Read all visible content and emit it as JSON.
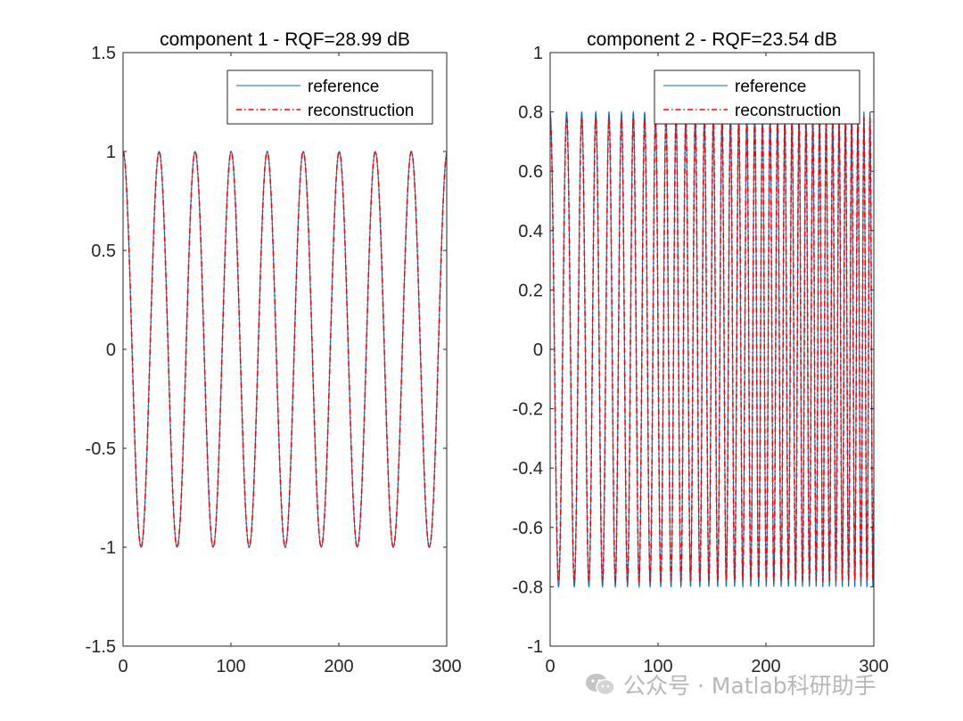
{
  "chart_data": [
    {
      "type": "line",
      "title": "component 1 - RQF=28.99 dB",
      "xlabel": "",
      "ylabel": "",
      "xlim": [
        0,
        300
      ],
      "ylim": [
        -1.5,
        1.5
      ],
      "xticks": [
        0,
        100,
        200,
        300
      ],
      "xtick_labels": [
        "0",
        "100",
        "200",
        "300"
      ],
      "yticks": [
        -1.5,
        -1,
        -0.5,
        0,
        0.5,
        1,
        1.5
      ],
      "ytick_labels": [
        "-1.5",
        "-1",
        "-0.5",
        "0",
        "0.5",
        "1",
        "1.5"
      ],
      "legend": {
        "location": "top-right",
        "entries": [
          "reference",
          "reconstruction"
        ]
      },
      "grid": false,
      "series": [
        {
          "name": "reference",
          "color": "#0072BD",
          "style": "solid",
          "signal": "cosine",
          "amplitude": 1.0,
          "period": 33.4,
          "x_start": 0,
          "x_end": 300
        },
        {
          "name": "reconstruction",
          "color": "#FF0000",
          "style": "dash-dot",
          "signal": "cosine",
          "amplitude": 1.0,
          "period": 33.4,
          "x_start": 0,
          "x_end": 300
        }
      ]
    },
    {
      "type": "line",
      "title": "component 2 - RQF=23.54 dB",
      "xlabel": "",
      "ylabel": "",
      "xlim": [
        0,
        300
      ],
      "ylim": [
        -1,
        1
      ],
      "xticks": [
        0,
        100,
        200,
        300
      ],
      "xtick_labels": [
        "0",
        "100",
        "200",
        "300"
      ],
      "yticks": [
        -1,
        -0.8,
        -0.6,
        -0.4,
        -0.2,
        0,
        0.2,
        0.4,
        0.6,
        0.8,
        1
      ],
      "ytick_labels": [
        "-1",
        "-0.8",
        "-0.6",
        "-0.4",
        "-0.2",
        "0",
        "0.2",
        "0.4",
        "0.6",
        "0.8",
        "1"
      ],
      "legend": {
        "location": "top-right",
        "entries": [
          "reference",
          "reconstruction"
        ]
      },
      "grid": false,
      "series": [
        {
          "name": "reference",
          "color": "#0072BD",
          "style": "solid",
          "signal": "chirp",
          "amplitude": 0.8,
          "start_period": 16,
          "end_period": 5.5,
          "x_start": 0,
          "x_end": 300
        },
        {
          "name": "reconstruction",
          "color": "#FF0000",
          "style": "dash-dot",
          "signal": "chirp",
          "amplitude": 0.78,
          "start_period": 16,
          "end_period": 5.5,
          "x_start": 0,
          "x_end": 300
        }
      ]
    }
  ],
  "watermark": {
    "text": "公众号 · Matlab科研助手",
    "icon": "wechat-icon"
  }
}
